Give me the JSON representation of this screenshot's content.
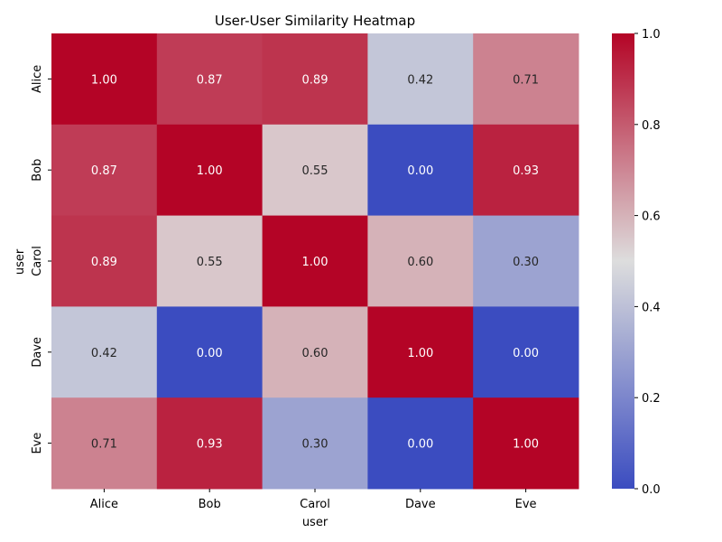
{
  "chart_data": {
    "type": "heatmap",
    "title": "User-User Similarity Heatmap",
    "xlabel": "user",
    "ylabel": "user",
    "x_categories": [
      "Alice",
      "Bob",
      "Carol",
      "Dave",
      "Eve"
    ],
    "y_categories": [
      "Alice",
      "Bob",
      "Carol",
      "Dave",
      "Eve"
    ],
    "values": [
      [
        1.0,
        0.87,
        0.89,
        0.42,
        0.71
      ],
      [
        0.87,
        1.0,
        0.55,
        0.0,
        0.93
      ],
      [
        0.89,
        0.55,
        1.0,
        0.6,
        0.3
      ],
      [
        0.42,
        0.0,
        0.6,
        1.0,
        0.0
      ],
      [
        0.71,
        0.93,
        0.3,
        0.0,
        1.0
      ]
    ],
    "value_format_decimals": 2,
    "colormap": "coolwarm",
    "colormap_stops": [
      "#3b4cc0",
      "#dddddd",
      "#b40426"
    ],
    "colorbar": {
      "range": [
        0,
        1
      ],
      "ticks": [
        "0.0",
        "0.2",
        "0.4",
        "0.6",
        "0.8",
        "1.0"
      ]
    }
  }
}
